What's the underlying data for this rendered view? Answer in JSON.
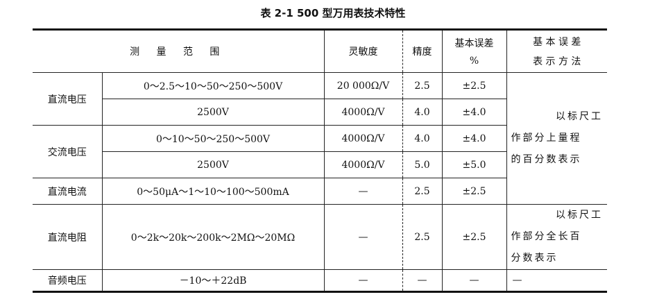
{
  "title": "表 2-1   500 型万用表技术特性",
  "headers": {
    "range": "测 量 范 围",
    "sensitivity": "灵敏度",
    "accuracy": "精度",
    "error_line1": "基本误差",
    "error_line2": "%",
    "method_line1": "基 本 误 差",
    "method_line2": "表 示 方 法"
  },
  "rows": [
    {
      "category": "直流电压",
      "range": "0～2.5～10～50～250～500V",
      "sensitivity": "20 000Ω/V",
      "accuracy": "2.5",
      "error": "±2.5"
    },
    {
      "range": "2500V",
      "sensitivity": "4000Ω/V",
      "accuracy": "4.0",
      "error": "±4.0"
    },
    {
      "category": "交流电压",
      "range": "0～10～50～250～500V",
      "sensitivity": "4000Ω/V",
      "accuracy": "4.0",
      "error": "±4.0"
    },
    {
      "range": "2500V",
      "sensitivity": "4000Ω/V",
      "accuracy": "5.0",
      "error": "±5.0"
    },
    {
      "category": "直流电流",
      "range": "0～50μA～1～10～100～500mA",
      "sensitivity": "—",
      "accuracy": "2.5",
      "error": "±2.5"
    },
    {
      "category": "直流电阻",
      "range": "0～2k～20k～200k～2MΩ～20MΩ",
      "sensitivity": "—",
      "accuracy": "2.5",
      "error": "±2.5"
    },
    {
      "category": "音频电压",
      "range": "－10～＋22dB",
      "sensitivity": "—",
      "accuracy": "—",
      "error": "—",
      "method": "—"
    }
  ],
  "method_upper": {
    "line1": "以标尺工",
    "line2": "作部分上量程",
    "line3": "的百分数表示"
  },
  "method_lower": {
    "line1": "以标尺工",
    "line2": "作部分全长百",
    "line3": "分数表示"
  }
}
